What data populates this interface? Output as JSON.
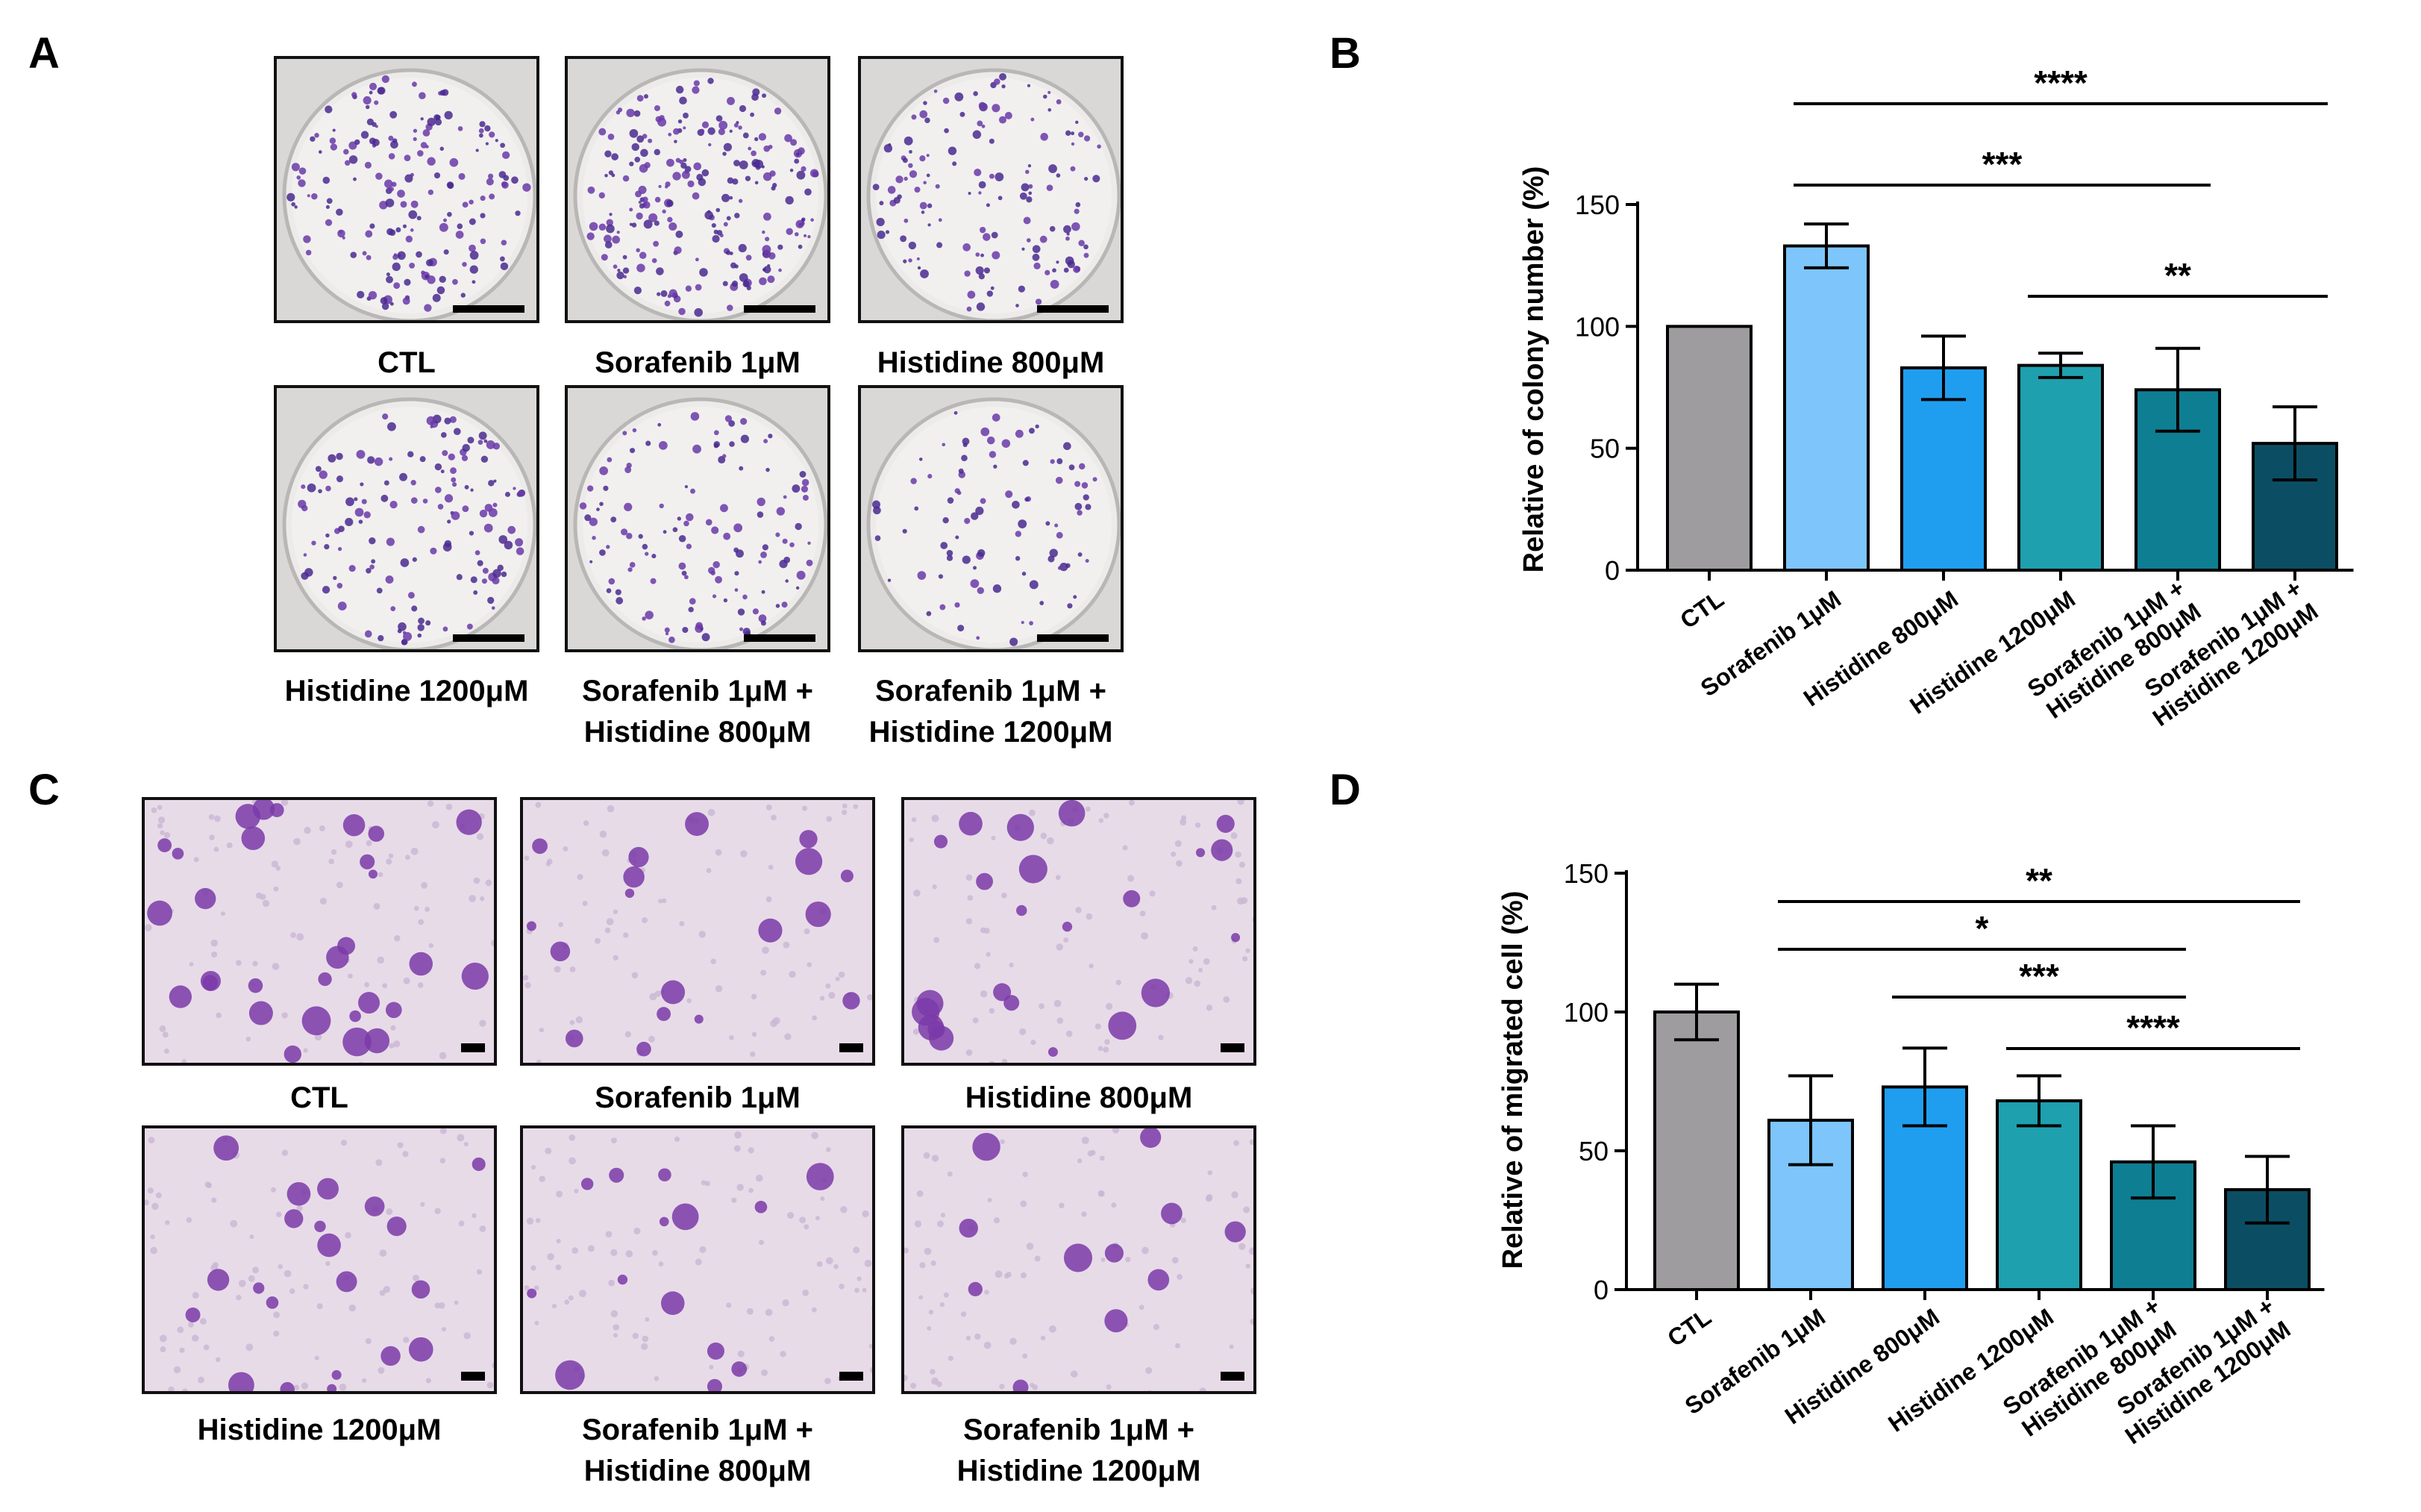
{
  "panels": {
    "A": "A",
    "B": "B",
    "C": "C",
    "D": "D"
  },
  "panel_a_captions": [
    [
      "CTL"
    ],
    [
      "Sorafenib 1μM"
    ],
    [
      "Histidine 800μM"
    ],
    [
      "Histidine 1200μM"
    ],
    [
      "Sorafenib 1μM +",
      "Histidine 800μM"
    ],
    [
      "Sorafenib 1μM +",
      "Histidine 1200μM"
    ]
  ],
  "panel_c_captions": [
    [
      "CTL"
    ],
    [
      "Sorafenib 1μM"
    ],
    [
      "Histidine 800μM"
    ],
    [
      "Histidine 1200μM"
    ],
    [
      "Sorafenib 1μM +",
      "Histidine 800μM"
    ],
    [
      "Sorafenib 1μM +",
      "Histidine 1200μM"
    ]
  ],
  "panel_a_colony_density": [
    1.0,
    1.3,
    0.8,
    0.8,
    0.7,
    0.5
  ],
  "panel_c_cell_density": [
    1.0,
    0.6,
    0.75,
    0.7,
    0.45,
    0.35
  ],
  "chart_data": [
    {
      "type": "bar",
      "ylabel": "Relative of colony number (%)",
      "ylim": [
        0,
        150
      ],
      "yticks": [
        0,
        50,
        100,
        150
      ],
      "categories": [
        [
          "CTL"
        ],
        [
          "Sorafenib 1μM"
        ],
        [
          "Histidine 800μM"
        ],
        [
          "Histidine 1200μM"
        ],
        [
          "Sorafenib 1μM +",
          "Histidine 800μM"
        ],
        [
          "Sorafenib 1μM +",
          "Histidine 1200μM"
        ]
      ],
      "values": [
        100,
        133,
        83,
        84,
        74,
        52
      ],
      "errors": [
        0,
        9,
        13,
        5,
        17,
        15
      ],
      "colors": [
        "#9e9c9f",
        "#7dc5fb",
        "#1f9ef0",
        "#1ea0af",
        "#0e7e93",
        "#0b4e63"
      ],
      "significance": [
        {
          "from": 1,
          "to": 5,
          "label": "****"
        },
        {
          "from": 1,
          "to": 4,
          "label": "***"
        },
        {
          "from": 3,
          "to": 5,
          "label": "**"
        }
      ]
    },
    {
      "type": "bar",
      "ylabel": "Relative of migrated cell (%)",
      "ylim": [
        0,
        150
      ],
      "yticks": [
        0,
        50,
        100,
        150
      ],
      "categories": [
        [
          "CTL"
        ],
        [
          "Sorafenib 1μM"
        ],
        [
          "Histidine 800μM"
        ],
        [
          "Histidine 1200μM"
        ],
        [
          "Sorafenib 1μM +",
          "Histidine 800μM"
        ],
        [
          "Sorafenib 1μM +",
          "Histidine 1200μM"
        ]
      ],
      "values": [
        100,
        61,
        73,
        68,
        46,
        36
      ],
      "errors": [
        10,
        16,
        14,
        9,
        13,
        12
      ],
      "colors": [
        "#9e9c9f",
        "#7dc5fb",
        "#1f9ef0",
        "#1ea0af",
        "#0e7e93",
        "#0b4e63"
      ],
      "significance": [
        {
          "from": 1,
          "to": 5,
          "label": "**"
        },
        {
          "from": 1,
          "to": 4,
          "label": "*"
        },
        {
          "from": 2,
          "to": 4,
          "label": "***"
        },
        {
          "from": 3,
          "to": 5,
          "label": "****"
        }
      ]
    }
  ]
}
